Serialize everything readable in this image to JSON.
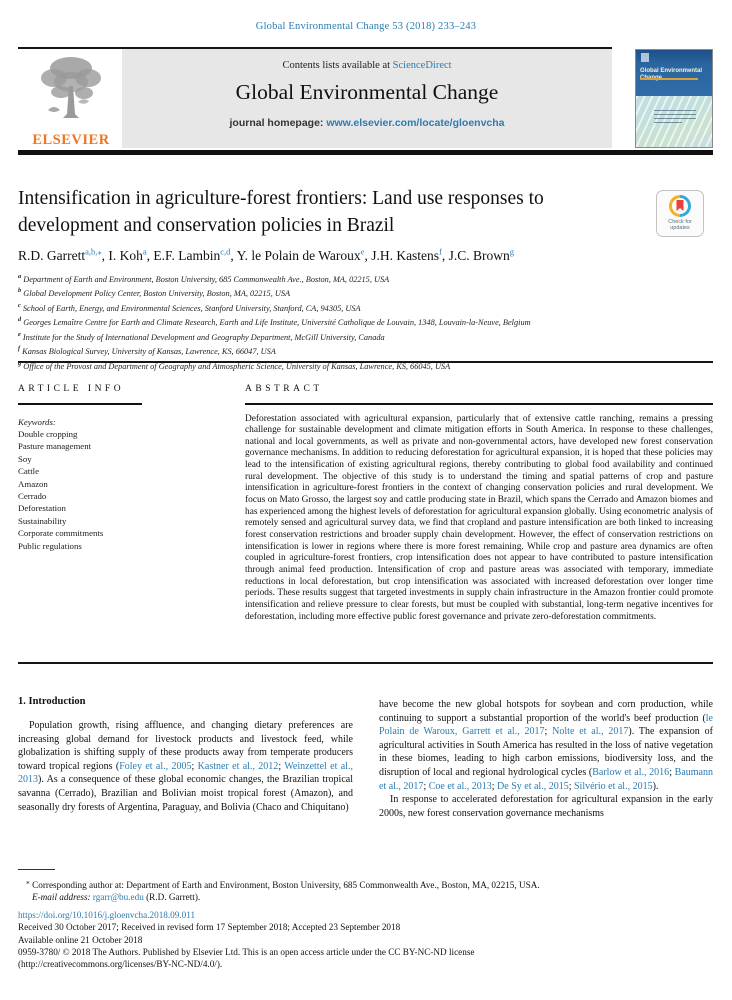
{
  "running_head": "Global Environmental Change 53 (2018) 233–243",
  "masthead": {
    "elsevier_logo_text": "ELSEVIER",
    "contents_prefix": "Contents lists available at ",
    "sciencedirect": "ScienceDirect",
    "journal_title": "Global Environmental Change",
    "homepage_label": "journal homepage: ",
    "homepage_url": "www.elsevier.com/locate/gloenvcha",
    "cover_title": "Global Environmental Change"
  },
  "badge": {
    "label": "Check for updates"
  },
  "article": {
    "title": "Intensification in agriculture-forest frontiers: Land use responses to development and conservation policies in Brazil",
    "authors": [
      {
        "name": "R.D. Garrett",
        "sup": "a,b,⁎"
      },
      {
        "name": "I. Koh",
        "sup": "a"
      },
      {
        "name": "E.F. Lambin",
        "sup": "c,d"
      },
      {
        "name": "Y. le Polain de Waroux",
        "sup": "e"
      },
      {
        "name": "J.H. Kastens",
        "sup": "f"
      },
      {
        "name": "J.C. Brown",
        "sup": "g"
      }
    ],
    "affiliations": [
      {
        "sup": "a",
        "text": " Department of Earth and Environment, Boston University, 685 Commonwealth Ave., Boston, MA, 02215, USA"
      },
      {
        "sup": "b",
        "text": " Global Development Policy Center, Boston University, Boston, MA, 02215, USA"
      },
      {
        "sup": "c",
        "text": " School of Earth, Energy, and Environmental Sciences, Stanford University, Stanford, CA, 94305, USA"
      },
      {
        "sup": "d",
        "text": " Georges Lemaître Centre for Earth and Climate Research, Earth and Life Institute, Université Catholique de Louvain, 1348, Louvain-la-Neuve, Belgium"
      },
      {
        "sup": "e",
        "text": " Institute for the Study of International Development and Geography Department, McGill University, Canada"
      },
      {
        "sup": "f",
        "text": " Kansas Biological Survey, University of Kansas, Lawrence, KS, 66047, USA"
      },
      {
        "sup": "g",
        "text": " Office of the Provost and Department of Geography and Atmospheric Science, University of Kansas, Lawrence, KS, 66045, USA"
      }
    ]
  },
  "article_info": {
    "heading": "ARTICLE INFO",
    "keywords_label": "Keywords:",
    "keywords": [
      "Double cropping",
      "Pasture management",
      "Soy",
      "Cattle",
      "Amazon",
      "Cerrado",
      "Deforestation",
      "Sustainability",
      "Corporate commitments",
      "Public regulations"
    ]
  },
  "abstract": {
    "heading": "ABSTRACT",
    "text": "Deforestation associated with agricultural expansion, particularly that of extensive cattle ranching, remains a pressing challenge for sustainable development and climate mitigation efforts in South America. In response to these challenges, national and local governments, as well as private and non-governmental actors, have developed new forest conservation governance mechanisms. In addition to reducing deforestation for agricultural expansion, it is hoped that these policies may lead to the intensification of existing agricultural regions, thereby contributing to global food availability and continued rural development. The objective of this study is to understand the timing and spatial patterns of crop and pasture intensification in agriculture-forest frontiers in the context of changing conservation policies and rural development. We focus on Mato Grosso, the largest soy and cattle producing state in Brazil, which spans the Cerrado and Amazon biomes and has experienced among the highest levels of deforestation for agricultural expansion globally. Using econometric analysis of remotely sensed and agricultural survey data, we find that cropland and pasture intensification are both linked to increasing forest conservation restrictions and broader supply chain development. However, the effect of conservation restrictions on intensification is lower in regions where there is more forest remaining. While crop and pasture area dynamics are often coupled in agriculture-forest frontiers, crop intensification does not appear to have contributed to pasture intensification through animal feed production. Intensification of crop and pasture areas was associated with temporary, immediate reductions in local deforestation, but crop intensification was associated with increased deforestation over longer time periods. These results suggest that targeted investments in supply chain infrastructure in the Amazon frontier could promote intensification and relieve pressure to clear forests, but must be coupled with substantial, long-term negative incentives for deforestation, including more effective public forest governance and private zero-deforestation commitments."
  },
  "introduction": {
    "heading": "1. Introduction",
    "left_paragraph": [
      {
        "t": "Population growth, rising affluence, and changing dietary preferences are increasing global demand for livestock products and livestock feed, while globalization is shifting supply of these products away from temperate producers toward tropical regions ("
      },
      {
        "t": "Foley et al., 2005",
        "link": true
      },
      {
        "t": "; "
      },
      {
        "t": "Kastner et al., 2012",
        "link": true
      },
      {
        "t": "; "
      },
      {
        "t": "Weinzettel et al., 2013",
        "link": true
      },
      {
        "t": "). As a consequence of these global economic changes, the Brazilian tropical savanna (Cerrado), Brazilian and Bolivian moist tropical forest (Amazon), and seasonally dry forests of Argentina, Paraguay, and Bolivia (Chaco and Chiquitano)"
      }
    ],
    "right_paragraph_1": [
      {
        "t": "have become the new global hotspots for soybean and corn production, while continuing to support a substantial proportion of the world's beef production ("
      },
      {
        "t": "le Polain de Waroux, Garrett et al., 2017",
        "link": true
      },
      {
        "t": "; "
      },
      {
        "t": "Nolte et al., 2017",
        "link": true
      },
      {
        "t": "). The expansion of agricultural activities in South America has resulted in the loss of native vegetation in these biomes, leading to high carbon emissions, biodiversity loss, and the disruption of local and regional hydrological cycles ("
      },
      {
        "t": "Barlow et al., 2016",
        "link": true
      },
      {
        "t": "; "
      },
      {
        "t": "Baumann et al., 2017",
        "link": true
      },
      {
        "t": "; "
      },
      {
        "t": "Coe et al., 2013",
        "link": true
      },
      {
        "t": "; "
      },
      {
        "t": "De Sy et al., 2015",
        "link": true
      },
      {
        "t": "; "
      },
      {
        "t": "Silvério et al., 2015",
        "link": true
      },
      {
        "t": ")."
      }
    ],
    "right_paragraph_2": "In response to accelerated deforestation for agricultural expansion in the early 2000s, new forest conservation governance mechanisms"
  },
  "footnotes": {
    "corresponding_marker": "⁎",
    "corresponding": " Corresponding author at: Department of Earth and Environment, Boston University, 685 Commonwealth Ave., Boston, MA, 02215, USA.",
    "email_label": "E-mail address:",
    "email": "rgarr@bu.edu",
    "email_suffix": "(R.D. Garrett).",
    "doi": "https://doi.org/10.1016/j.gloenvcha.2018.09.011",
    "received": "Received 30 October 2017; Received in revised form 17 September 2018; Accepted 23 September 2018",
    "available": "Available online 21 October 2018",
    "issn_line": "0959-3780/ © 2018 The Authors. Published by Elsevier Ltd. This is an open access article under the CC BY-NC-ND license",
    "license_line": "(http://creativecommons.org/licenses/BY-NC-ND/4.0/)."
  }
}
